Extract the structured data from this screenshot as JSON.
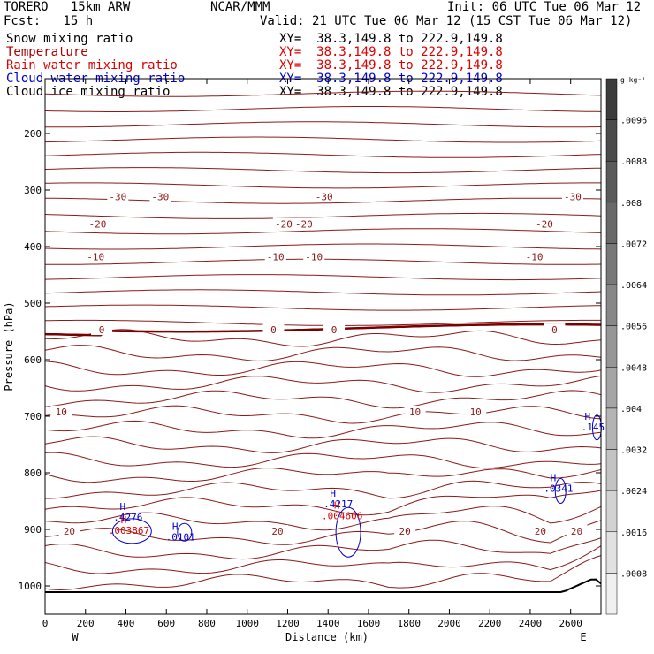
{
  "header": {
    "model": "TORERO   15km ARW",
    "org": "NCAR/MMM",
    "init": "Init: 06 UTC Tue 06 Mar 12",
    "fcst": "Fcst:   15 h",
    "valid": "Valid: 21 UTC Tue 06 Mar 12 (15 CST Tue 06 Mar 12)"
  },
  "fields": [
    {
      "name": "Snow mixing ratio",
      "xy": "XY=  38.3,149.8 to 222.9,149.8",
      "color": "#000000"
    },
    {
      "name": "Temperature",
      "xy": "XY=  38.3,149.8 to 222.9,149.8",
      "color": "#b00000"
    },
    {
      "name": "Rain water mixing ratio",
      "xy": "XY=  38.3,149.8 to 222.9,149.8",
      "color": "#dd0000"
    },
    {
      "name": "Cloud water mixing ratio",
      "xy": "XY=  38.3,149.8 to 222.9,149.8",
      "color": "#0000cc"
    },
    {
      "name": "Cloud ice mixing ratio",
      "xy": "XY=  38.3,149.8 to 222.9,149.8",
      "color": "#000000"
    }
  ],
  "chart_data": {
    "type": "contour",
    "xlabel": "Distance (km)",
    "ylabel": "Pressure (hPa)",
    "xlim": [
      0,
      2750
    ],
    "ylim_pressure": [
      1050,
      110
    ],
    "x_ticks": [
      "0",
      "200",
      "400",
      "600",
      "800",
      "1000",
      "1200",
      "1400",
      "1600",
      "1800",
      "2000",
      "2200",
      "2400",
      "2600"
    ],
    "x_tick_values": [
      0,
      200,
      400,
      600,
      800,
      1000,
      1200,
      1400,
      1600,
      1800,
      2000,
      2200,
      2400,
      2600
    ],
    "y_ticks": [
      "200",
      "300",
      "400",
      "500",
      "600",
      "700",
      "800",
      "900",
      "1000"
    ],
    "y_tick_values": [
      200,
      300,
      400,
      500,
      600,
      700,
      800,
      900,
      1000
    ],
    "end_labels": {
      "left": "W",
      "right": "E"
    },
    "temperature_contours_C": [
      {
        "label": "-30",
        "pressure_hPa": 312,
        "label_x_km": [
          360,
          570,
          1380,
          2610
        ]
      },
      {
        "label": "-20",
        "pressure_hPa": 360,
        "label_x_km": [
          260,
          1180,
          1280,
          2470
        ]
      },
      {
        "label": "-10",
        "pressure_hPa": 418,
        "label_x_km": [
          250,
          1140,
          1330,
          2420
        ]
      },
      {
        "label": "0",
        "pressure_hPa": 547,
        "label_x_km": [
          280,
          1130,
          1430,
          2520
        ]
      },
      {
        "label": "10",
        "pressure_hPa": 692,
        "label_x_km": [
          80,
          1830,
          2130
        ]
      },
      {
        "label": "20",
        "pressure_hPa": 903,
        "label_x_km": [
          120,
          1150,
          1780,
          2450,
          2630
        ]
      }
    ],
    "maxima_labels": [
      {
        "field": "Cloud water mixing ratio",
        "label": "H",
        "value": ".4276",
        "x_km": 410,
        "pressure_hPa": 880
      },
      {
        "field": "Rain water mixing ratio",
        "label": "H",
        "value": ".003867",
        "x_km": 415,
        "pressure_hPa": 903
      },
      {
        "field": "Cloud water mixing ratio",
        "label": "H",
        "value": ".0101",
        "x_km": 670,
        "pressure_hPa": 915
      },
      {
        "field": "Cloud water mixing ratio",
        "label": "H",
        "value": ".4217",
        "x_km": 1450,
        "pressure_hPa": 856
      },
      {
        "field": "Rain water mixing ratio",
        "label": "H",
        "value": ".004606",
        "x_km": 1470,
        "pressure_hPa": 877
      },
      {
        "field": "Cloud water mixing ratio",
        "label": "H",
        "value": ".0341",
        "x_km": 2540,
        "pressure_hPa": 829
      },
      {
        "field": "Cloud water mixing ratio",
        "label": "H",
        "value": ".145",
        "x_km": 2710,
        "pressure_hPa": 720
      }
    ],
    "colorbar": {
      "units": "g kg⁻¹",
      "ticks": [
        ".0096",
        ".0088",
        ".008",
        ".0072",
        ".0064",
        ".0056",
        ".0048",
        ".004",
        ".0032",
        ".0024",
        ".0016",
        ".0008"
      ]
    }
  },
  "colors": {
    "temperature": "#8b1a1a",
    "freezing_line": "#7a0000",
    "cloud_water": "#0000cc",
    "rain_water": "#dd0000",
    "terrain": "#000000"
  }
}
